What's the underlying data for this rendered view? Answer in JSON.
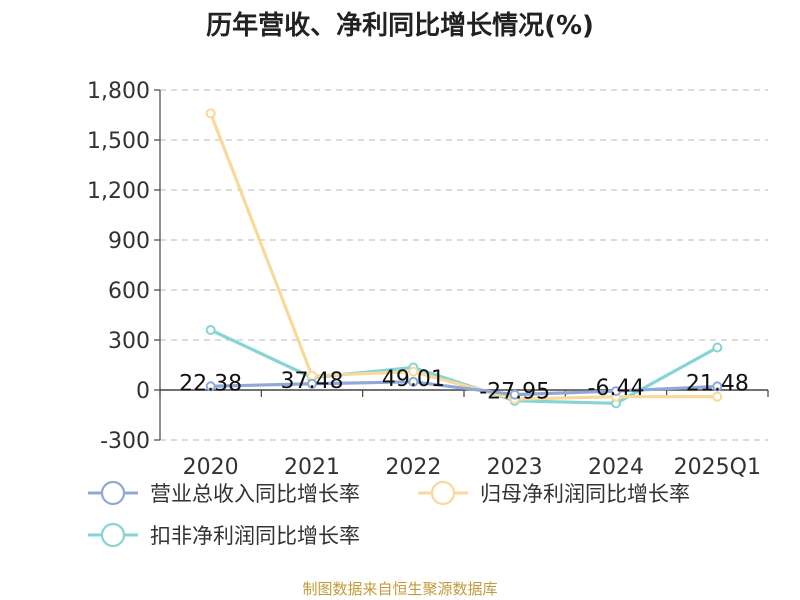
{
  "source_note": "制图数据来自恒生聚源数据库",
  "chart_data": {
    "type": "line",
    "title": "历年营收、净利同比增长情况(%)",
    "xlabel": "",
    "ylabel": "",
    "ylim": [
      -300,
      1800
    ],
    "ytick_values": [
      -300,
      0,
      300,
      600,
      900,
      1200,
      1500,
      1800
    ],
    "ytick_labels": [
      "-300",
      "0",
      "300",
      "600",
      "900",
      "1,200",
      "1,500",
      "1,800"
    ],
    "categories": [
      "2020",
      "2021",
      "2022",
      "2023",
      "2024",
      "2025Q1"
    ],
    "grid": true,
    "legend_position": "bottom",
    "series": [
      {
        "name": "营业总收入同比增长率",
        "color": "#8fa8d6",
        "values": [
          22.38,
          37.48,
          49.01,
          -27.95,
          -6.44,
          21.48
        ],
        "labels": [
          "22.38",
          "37.48",
          "49.01",
          "-27.95",
          "-6.44",
          "21.48"
        ]
      },
      {
        "name": "归母净利润同比增长率",
        "color": "#f8d99a",
        "values": [
          1660,
          85,
          110,
          -55,
          -40,
          -40
        ]
      },
      {
        "name": "扣非净利润同比增长率",
        "color": "#86d4d4",
        "values": [
          360,
          75,
          135,
          -65,
          -80,
          255
        ]
      }
    ]
  }
}
